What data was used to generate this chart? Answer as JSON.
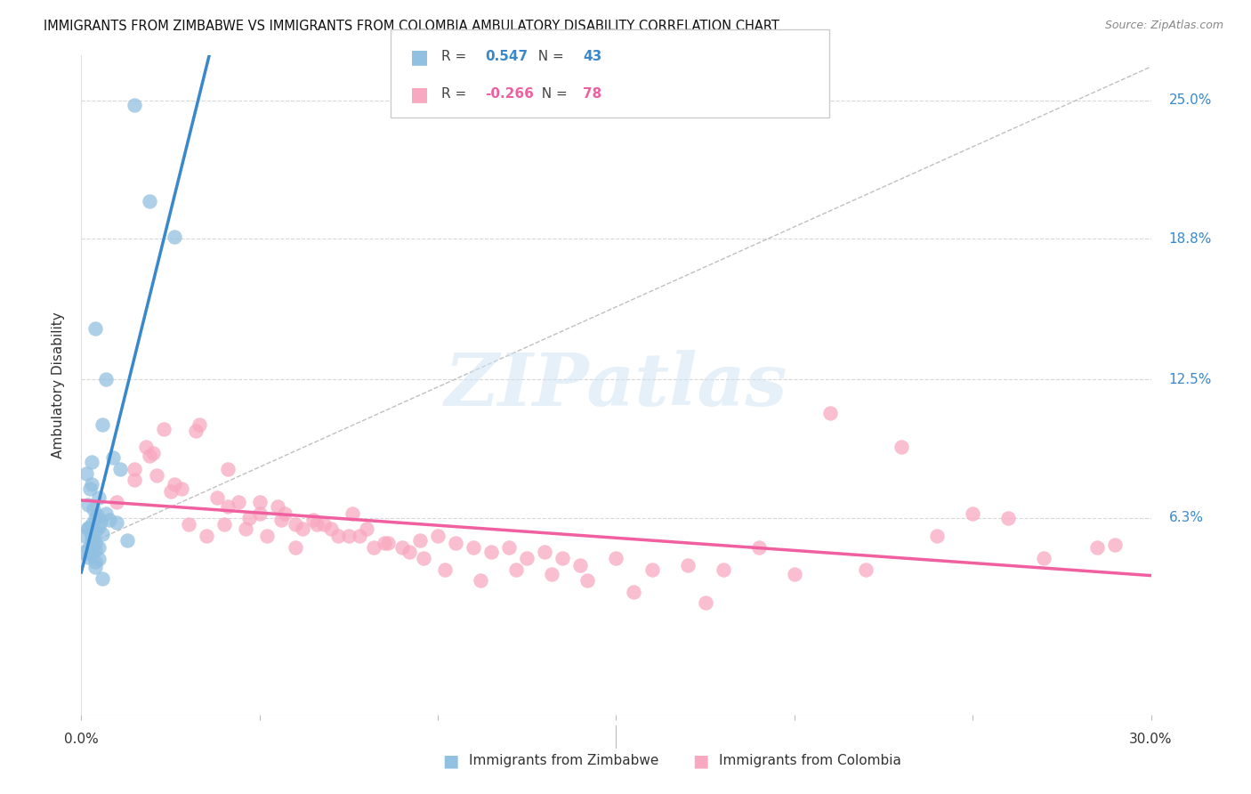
{
  "title": "IMMIGRANTS FROM ZIMBABWE VS IMMIGRANTS FROM COLOMBIA AMBULATORY DISABILITY CORRELATION CHART",
  "source": "Source: ZipAtlas.com",
  "ylabel": "Ambulatory Disability",
  "yticks": [
    6.3,
    12.5,
    18.8,
    25.0
  ],
  "ytick_labels": [
    "6.3%",
    "12.5%",
    "18.8%",
    "25.0%"
  ],
  "xmin": 0.0,
  "xmax": 30.0,
  "ymin": -2.5,
  "ymax": 27.0,
  "blue_R": "0.547",
  "blue_N": "43",
  "pink_R": "-0.266",
  "pink_N": "78",
  "blue_fill_color": "#92c0e0",
  "pink_fill_color": "#f8a8c0",
  "blue_line_color": "#3a88cc",
  "pink_line_color": "#f060a0",
  "diag_line_color": "#c0c0c0",
  "grid_color": "#d8d8d8",
  "legend_label_blue": "Immigrants from Zimbabwe",
  "legend_label_pink": "Immigrants from Colombia",
  "watermark_text": "ZIPatlas",
  "blue_scatter_x": [
    1.5,
    1.9,
    0.4,
    0.6,
    0.9,
    1.1,
    0.3,
    0.5,
    0.2,
    0.7,
    0.4,
    0.8,
    1.0,
    0.3,
    0.5,
    0.2,
    0.4,
    0.6,
    0.3,
    1.3,
    2.6,
    0.7,
    0.4,
    0.3,
    0.5,
    0.2,
    0.4,
    0.1,
    0.3,
    0.2,
    0.5,
    0.4,
    0.6,
    0.3,
    0.15,
    0.25,
    0.35,
    0.45,
    0.55,
    0.2,
    0.1,
    0.3,
    0.4
  ],
  "blue_scatter_y": [
    24.8,
    20.5,
    14.8,
    10.5,
    9.0,
    8.5,
    7.8,
    7.2,
    6.9,
    6.5,
    6.3,
    6.2,
    6.1,
    6.0,
    5.9,
    5.8,
    5.7,
    5.6,
    5.5,
    5.3,
    18.9,
    12.5,
    5.2,
    5.1,
    5.0,
    4.95,
    4.85,
    4.75,
    4.65,
    4.55,
    4.45,
    4.35,
    3.6,
    8.8,
    8.3,
    7.6,
    6.7,
    6.4,
    6.15,
    5.85,
    5.5,
    5.25,
    4.1
  ],
  "pink_scatter_x": [
    1.8,
    2.3,
    1.5,
    1.9,
    2.8,
    2.1,
    2.6,
    3.2,
    3.8,
    4.4,
    4.1,
    5.0,
    4.7,
    5.5,
    6.0,
    5.7,
    6.5,
    7.0,
    6.8,
    7.5,
    8.0,
    7.8,
    8.5,
    9.0,
    9.5,
    10.0,
    10.5,
    11.0,
    11.5,
    12.0,
    12.5,
    13.0,
    13.5,
    14.0,
    15.0,
    16.0,
    17.0,
    18.0,
    20.0,
    22.0,
    24.0,
    26.0,
    28.5,
    1.0,
    1.5,
    2.0,
    2.5,
    3.0,
    3.5,
    4.0,
    4.6,
    5.2,
    5.6,
    6.2,
    6.6,
    7.2,
    7.6,
    8.2,
    8.6,
    9.2,
    9.6,
    10.2,
    11.2,
    12.2,
    13.2,
    14.2,
    15.5,
    17.5,
    19.0,
    21.0,
    23.0,
    25.0,
    27.0,
    29.0,
    3.3,
    4.1,
    5.0,
    6.0
  ],
  "pink_scatter_y": [
    9.5,
    10.3,
    8.5,
    9.1,
    7.6,
    8.2,
    7.8,
    10.2,
    7.2,
    7.0,
    6.8,
    6.5,
    6.3,
    6.8,
    6.0,
    6.5,
    6.2,
    5.8,
    6.0,
    5.5,
    5.8,
    5.5,
    5.2,
    5.0,
    5.3,
    5.5,
    5.2,
    5.0,
    4.8,
    5.0,
    4.5,
    4.8,
    4.5,
    4.2,
    4.5,
    4.0,
    4.2,
    4.0,
    3.8,
    4.0,
    5.5,
    6.3,
    5.0,
    7.0,
    8.0,
    9.2,
    7.5,
    6.0,
    5.5,
    6.0,
    5.8,
    5.5,
    6.2,
    5.8,
    6.0,
    5.5,
    6.5,
    5.0,
    5.2,
    4.8,
    4.5,
    4.0,
    3.5,
    4.0,
    3.8,
    3.5,
    3.0,
    2.5,
    5.0,
    11.0,
    9.5,
    6.5,
    4.5,
    5.1,
    10.5,
    8.5,
    7.0,
    5.0
  ]
}
